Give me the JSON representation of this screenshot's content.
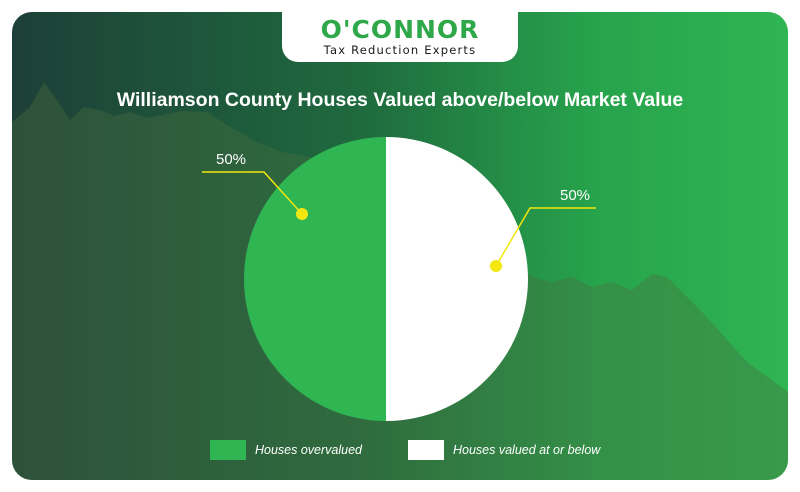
{
  "brand": {
    "name": "O'CONNOR",
    "tagline": "Tax Reduction Experts"
  },
  "colors": {
    "background_dark": "#1d3f38",
    "background_bright": "#2fb552",
    "overvalued": "#2fb552",
    "below": "#ffffff",
    "callout": "#f2e70f"
  },
  "chart_data": {
    "type": "pie",
    "title": "Williamson County Houses Valued above/below Market Value",
    "slices": [
      {
        "name": "Houses overvalued",
        "value": 50,
        "label": "50%",
        "color": "#2fb552"
      },
      {
        "name": "Houses valued at or below",
        "value": 50,
        "label": "50%",
        "color": "#ffffff"
      }
    ],
    "legend_position": "bottom"
  }
}
